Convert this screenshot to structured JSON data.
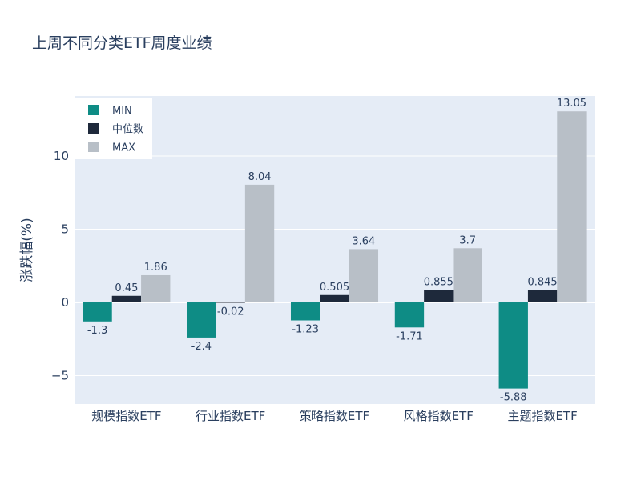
{
  "chart_data": {
    "type": "bar",
    "title": "上周不同分类ETF周度业绩",
    "ylabel": "涨跌幅(%)",
    "categories": [
      "规模指数ETF",
      "行业指数ETF",
      "策略指数ETF",
      "风格指数ETF",
      "主题指数ETF"
    ],
    "series": [
      {
        "name": "MIN",
        "color": "#0E8C85",
        "values": [
          -1.3,
          -2.4,
          -1.23,
          -1.71,
          -5.88
        ]
      },
      {
        "name": "中位数",
        "color": "#1E293B",
        "values": [
          0.45,
          -0.02,
          0.505,
          0.855,
          0.845
        ]
      },
      {
        "name": "MAX",
        "color": "#B8BFC7",
        "values": [
          1.86,
          8.04,
          3.64,
          3.7,
          13.05
        ]
      }
    ],
    "ylim": [
      -6.94,
      14.1
    ],
    "yticks": [
      -5,
      0,
      5,
      10
    ],
    "ytick_labels": [
      "−5",
      "0",
      "5",
      "10"
    ],
    "grid": true,
    "legend": "top-left",
    "plot_bgcolor": "#E5ECF6",
    "text_color": "#2A3F5F"
  }
}
